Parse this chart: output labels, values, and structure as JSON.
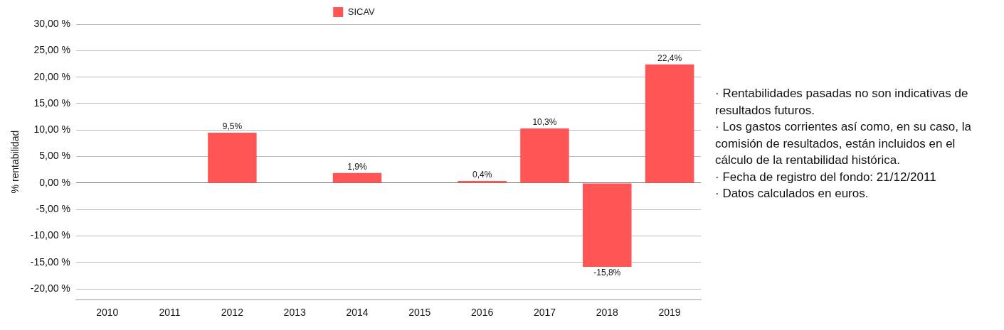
{
  "chart_data": {
    "type": "bar",
    "ylabel": "% rentabilidad",
    "categories": [
      "2010",
      "2011",
      "2012",
      "2013",
      "2014",
      "2015",
      "2016",
      "2017",
      "2018",
      "2019"
    ],
    "series": [
      {
        "name": "SICAV",
        "color": "#ff5555",
        "values": [
          null,
          null,
          9.5,
          null,
          1.9,
          null,
          0.4,
          10.3,
          -15.8,
          22.4
        ],
        "value_labels": [
          null,
          null,
          "9,5%",
          null,
          "1,9%",
          null,
          "0,4%",
          "10,3%",
          "-15,8%",
          "22,4%"
        ]
      }
    ],
    "ylim": [
      -22,
      30
    ],
    "yticks": [
      {
        "value": -20,
        "label": "-20,00 %"
      },
      {
        "value": -15,
        "label": "-15,00 %"
      },
      {
        "value": -10,
        "label": "-10,00 %"
      },
      {
        "value": -5,
        "label": "-5,00 %"
      },
      {
        "value": 0,
        "label": "0,00 %"
      },
      {
        "value": 5,
        "label": "5,00 %"
      },
      {
        "value": 10,
        "label": "10,00 %"
      },
      {
        "value": 15,
        "label": "15,00 %"
      },
      {
        "value": 20,
        "label": "20,00 %"
      },
      {
        "value": 25,
        "label": "25,00 %"
      },
      {
        "value": 30,
        "label": "30,00 %"
      }
    ],
    "grid": "y",
    "legend": "top",
    "annotations": [
      "· Rentabilidades pasadas no son indicativas de resultados futuros.",
      "· Los gastos corrientes así como, en su caso, la comisión de resultados, están incluidos en el cálculo de la rentabilidad histórica.",
      "· Fecha de registro del fondo: 21/12/2011",
      "· Datos calculados en euros."
    ]
  }
}
